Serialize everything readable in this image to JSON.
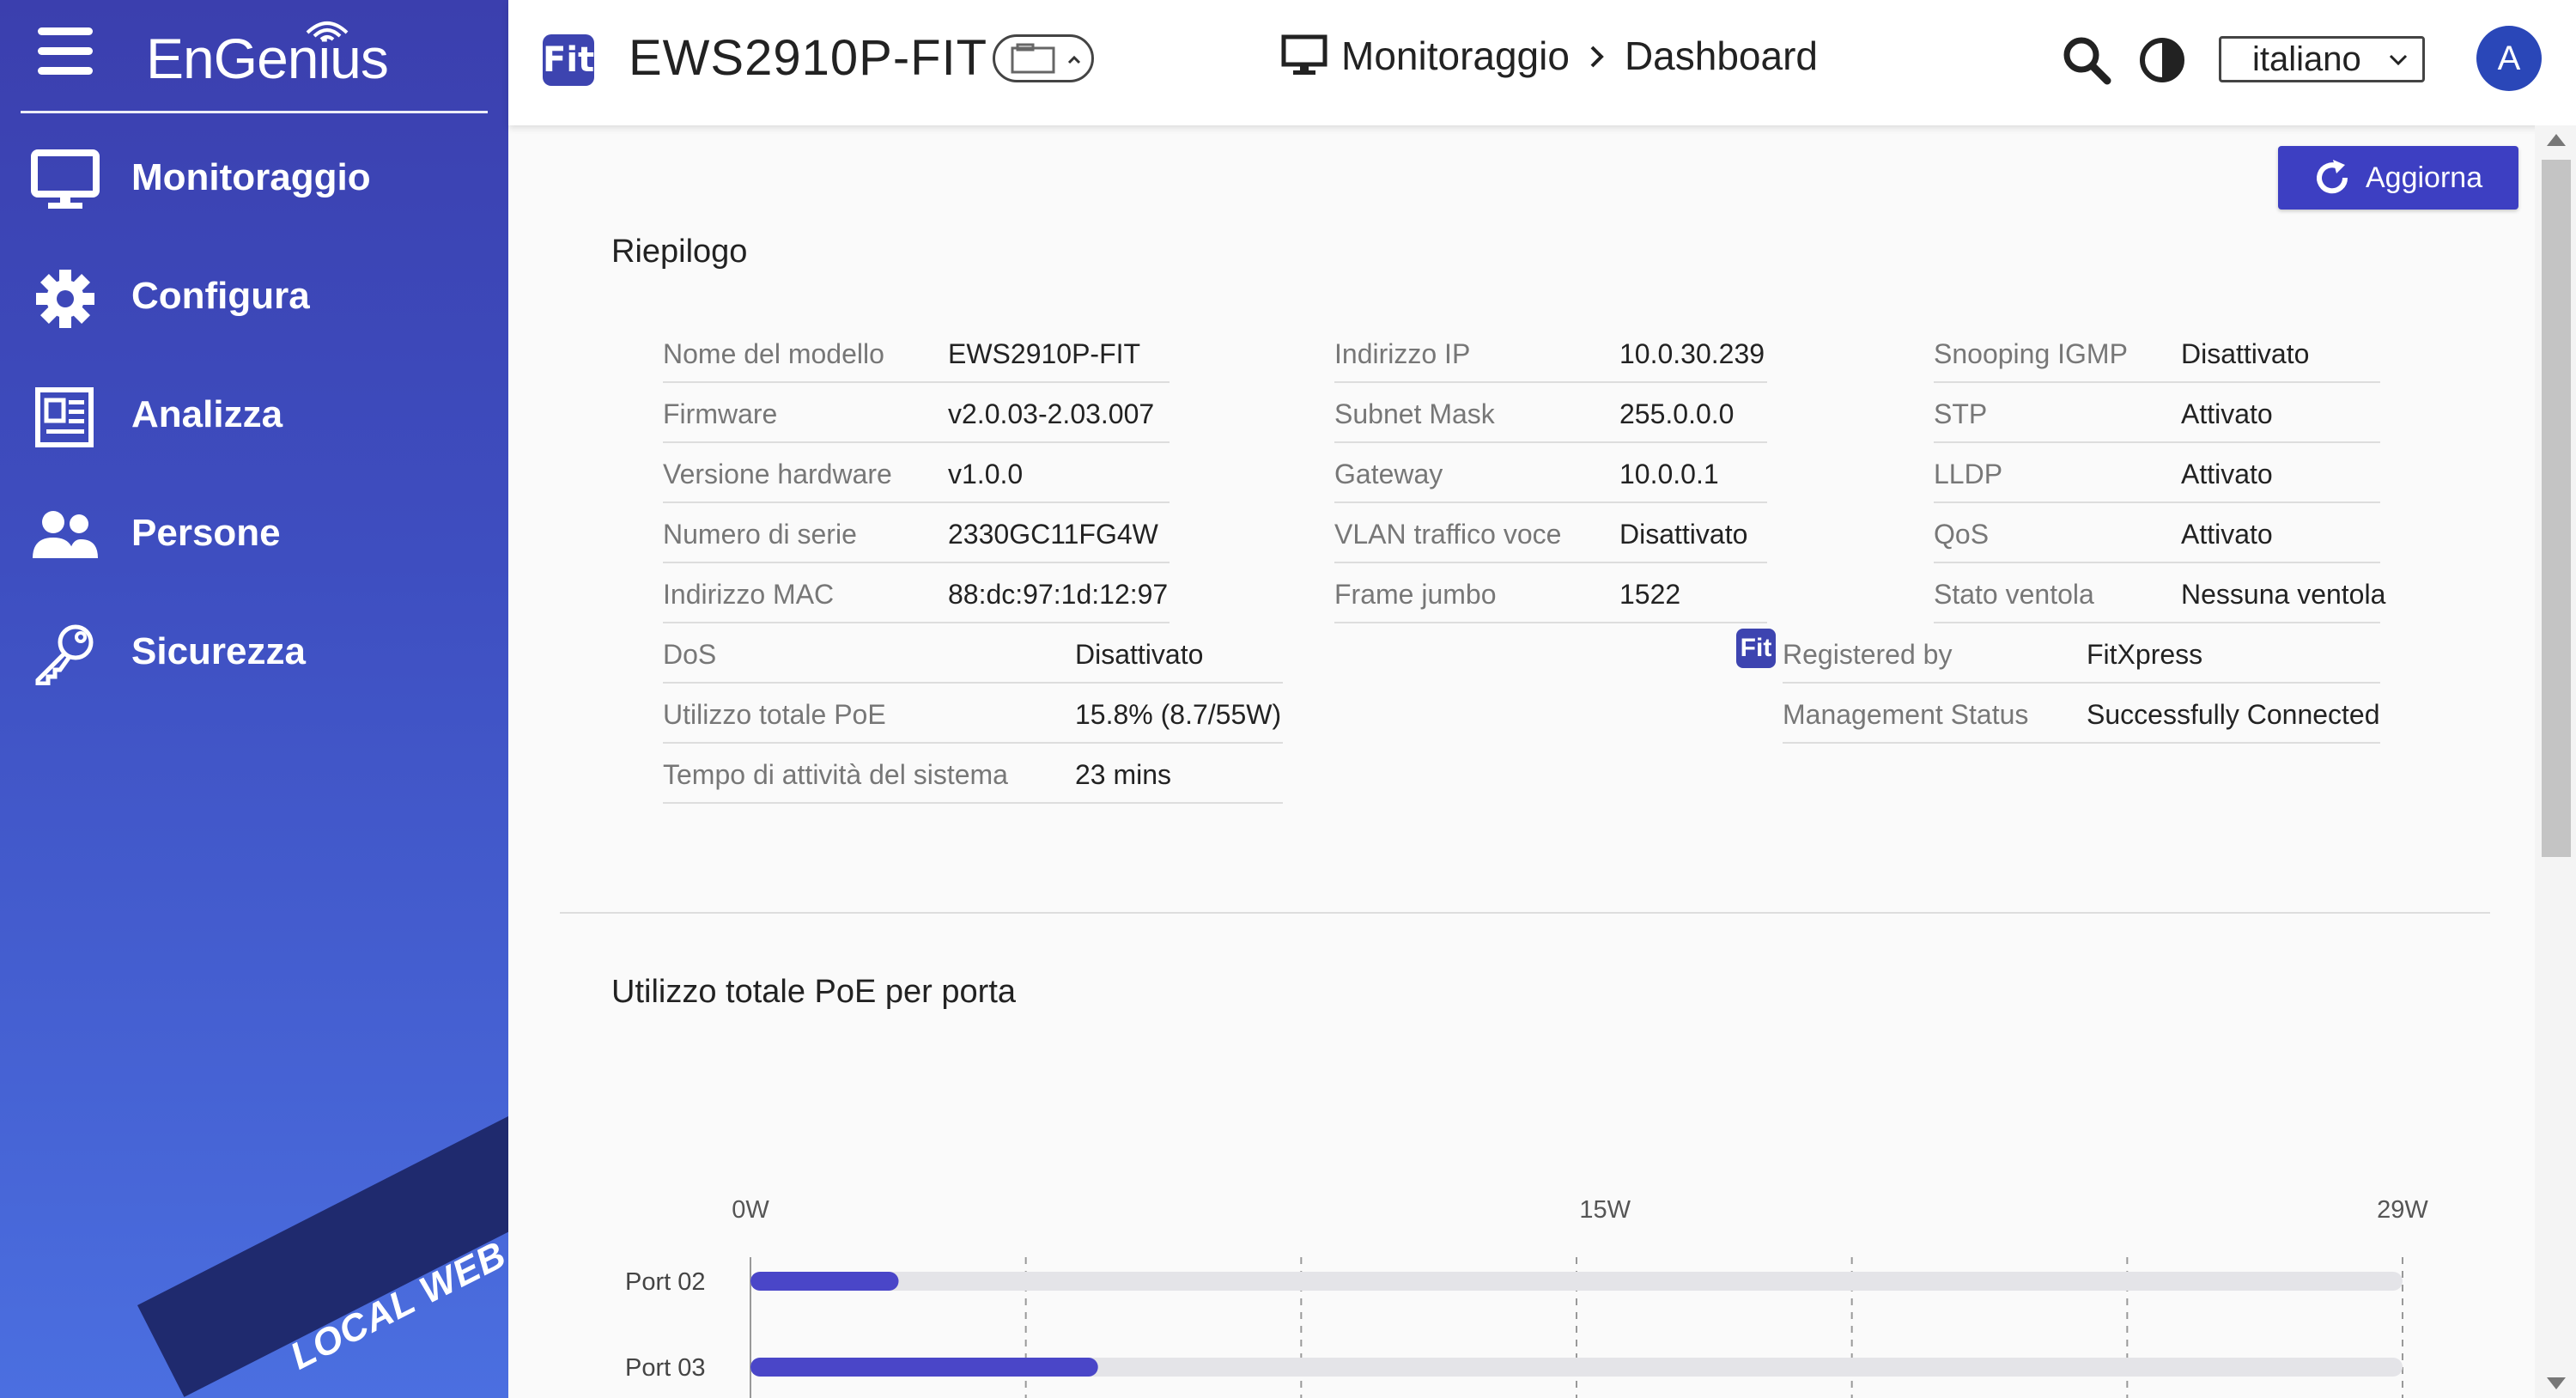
{
  "sidebar": {
    "brand": "EnGenius",
    "items": [
      {
        "label": "Monitoraggio",
        "icon": "monitor-icon"
      },
      {
        "label": "Configura",
        "icon": "gear-icon"
      },
      {
        "label": "Analizza",
        "icon": "report-icon"
      },
      {
        "label": "Persone",
        "icon": "people-icon"
      },
      {
        "label": "Sicurezza",
        "icon": "key-icon"
      }
    ],
    "ribbon": "LOCAL WEB"
  },
  "header": {
    "fit_badge": "Fit",
    "device": "EWS2910P-FIT",
    "breadcrumb": [
      "Monitoraggio",
      "Dashboard"
    ],
    "language": "italiano",
    "avatar": "A"
  },
  "main": {
    "refresh_label": "Aggiorna",
    "summary_title": "Riepilogo",
    "col1": [
      {
        "k": "Nome del modello",
        "v": "EWS2910P-FIT"
      },
      {
        "k": "Firmware",
        "v": "v2.0.03-2.03.007"
      },
      {
        "k": "Versione hardware",
        "v": "v1.0.0"
      },
      {
        "k": "Numero di serie",
        "v": "2330GC11FG4W"
      },
      {
        "k": "Indirizzo MAC",
        "v": "88:dc:97:1d:12:97"
      }
    ],
    "col1b": [
      {
        "k": "DoS",
        "v": "Disattivato"
      },
      {
        "k": "Utilizzo totale PoE",
        "v": "15.8% (8.7/55W)"
      },
      {
        "k": "Tempo di attività del sistema",
        "v": "23 mins"
      }
    ],
    "col2": [
      {
        "k": "Indirizzo IP",
        "v": "10.0.30.239"
      },
      {
        "k": "Subnet Mask",
        "v": "255.0.0.0"
      },
      {
        "k": "Gateway",
        "v": "10.0.0.1"
      },
      {
        "k": "VLAN traffico voce",
        "v": "Disattivato"
      },
      {
        "k": "Frame jumbo",
        "v": "1522"
      }
    ],
    "col3": [
      {
        "k": "Snooping IGMP",
        "v": "Disattivato"
      },
      {
        "k": "STP",
        "v": "Attivato"
      },
      {
        "k": "LLDP",
        "v": "Attivato"
      },
      {
        "k": "QoS",
        "v": "Attivato"
      },
      {
        "k": "Stato ventola",
        "v": "Nessuna ventola"
      }
    ],
    "fit_mini": "Fit",
    "col3b": [
      {
        "k": "Registered by",
        "v": "FitXpress"
      },
      {
        "k": "Management Status",
        "v": "Successfully Connected"
      }
    ],
    "poe_title": "Utilizzo totale PoE per porta"
  },
  "chart_data": {
    "type": "bar",
    "orientation": "horizontal",
    "categories": [
      "Port 02",
      "Port 03"
    ],
    "values": [
      2.6,
      6.1
    ],
    "xlim": [
      0,
      29
    ],
    "tick_labels": [
      "0W",
      "15W",
      "29W"
    ],
    "unit": "W",
    "bar_color": "#4a46c8",
    "track_color": "#e4e4e8",
    "grid": true
  }
}
